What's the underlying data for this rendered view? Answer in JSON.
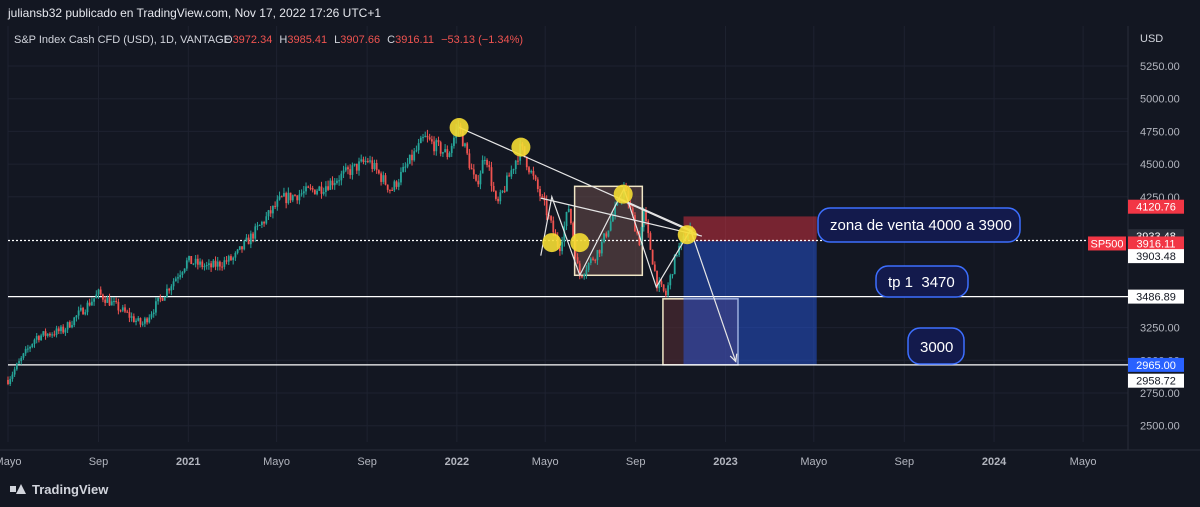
{
  "header": {
    "publisher": "juliansb32 publicado en TradingView.com, Nov 17, 2022 17:26 UTC+1"
  },
  "legend": {
    "symbol": "S&P Index Cash CFD (USD), 1D, VANTAGE",
    "o_label": "O",
    "o_value": "3972.34",
    "h_label": "H",
    "h_value": "3985.41",
    "l_label": "L",
    "l_value": "3907.66",
    "c_label": "C",
    "c_value": "3916.11",
    "change": "−53.13 (−1.34%)"
  },
  "annotations": {
    "zona": "zona de venta 4000 a 3900",
    "tp1": "tp 1  3470",
    "tp2": "3000"
  },
  "footer": {
    "brand": "TradingView"
  },
  "colors": {
    "background": "#131722",
    "up": "#26a69a",
    "down": "#ef5350",
    "sell_zone": "#f23645",
    "target_zone": "#2962ff",
    "marker": "#f5dd33",
    "box": "#f0e6c6"
  },
  "chart_data": {
    "type": "candlestick",
    "title": "S&P Index Cash CFD (USD), 1D, VANTAGE",
    "ylabel": "USD",
    "ylim": [
      2350,
      5400
    ],
    "y_ticks": [
      "5250.00",
      "5000.00",
      "4750.00",
      "4500.00",
      "4250.00",
      "3250.00",
      "3000.00",
      "2750.00",
      "2500.00"
    ],
    "x_ticks": [
      "Mayo",
      "Sep",
      "2021",
      "Mayo",
      "Sep",
      "2022",
      "Mayo",
      "Sep",
      "2023",
      "Mayo",
      "Sep",
      "2024",
      "Mayo"
    ],
    "xlim": [
      "2020-05-01",
      "2024-07-01"
    ],
    "price_trend": [
      {
        "date": "2020-05-01",
        "value": 2850
      },
      {
        "date": "2020-06-08",
        "value": 3180
      },
      {
        "date": "2020-07-15",
        "value": 3230
      },
      {
        "date": "2020-09-01",
        "value": 3510
      },
      {
        "date": "2020-10-30",
        "value": 3270
      },
      {
        "date": "2020-12-31",
        "value": 3760
      },
      {
        "date": "2021-01-29",
        "value": 3710
      },
      {
        "date": "2021-03-04",
        "value": 3780
      },
      {
        "date": "2021-05-07",
        "value": 4230
      },
      {
        "date": "2021-07-01",
        "value": 4320
      },
      {
        "date": "2021-09-02",
        "value": 4530
      },
      {
        "date": "2021-10-04",
        "value": 4300
      },
      {
        "date": "2021-11-18",
        "value": 4700
      },
      {
        "date": "2021-12-20",
        "value": 4570
      },
      {
        "date": "2022-01-03",
        "value": 4800
      },
      {
        "date": "2022-01-27",
        "value": 4330
      },
      {
        "date": "2022-02-09",
        "value": 4590
      },
      {
        "date": "2022-02-24",
        "value": 4170
      },
      {
        "date": "2022-03-29",
        "value": 4630
      },
      {
        "date": "2022-05-02",
        "value": 4150
      },
      {
        "date": "2022-05-20",
        "value": 3850
      },
      {
        "date": "2022-06-02",
        "value": 4170
      },
      {
        "date": "2022-06-16",
        "value": 3640
      },
      {
        "date": "2022-07-15",
        "value": 3860
      },
      {
        "date": "2022-08-16",
        "value": 4320
      },
      {
        "date": "2022-09-06",
        "value": 3910
      },
      {
        "date": "2022-09-12",
        "value": 4120
      },
      {
        "date": "2022-09-30",
        "value": 3590
      },
      {
        "date": "2022-10-12",
        "value": 3500
      },
      {
        "date": "2022-10-27",
        "value": 3830
      },
      {
        "date": "2022-11-15",
        "value": 4020
      },
      {
        "date": "2022-11-17",
        "value": 3916.11
      }
    ],
    "price_labels": [
      {
        "value": 4120.76,
        "text": "4120.76",
        "style": "red"
      },
      {
        "value": 3933.48,
        "text": "3933.48",
        "style": "dark"
      },
      {
        "value": 3916.11,
        "text": "3916.11",
        "style": "red",
        "tag": "SP500"
      },
      {
        "value": 3903.48,
        "text": "3903.48",
        "style": "light"
      },
      {
        "value": 3486.89,
        "text": "3486.89",
        "style": "light"
      },
      {
        "value": 2965.0,
        "text": "2965.00",
        "style": "blue"
      },
      {
        "value": 2958.72,
        "text": "2958.72",
        "style": "light"
      }
    ],
    "horizontal_lines": [
      3916.11,
      3486.89,
      2965.0
    ],
    "markers": [
      {
        "date": "2022-01-04",
        "value": 4780
      },
      {
        "date": "2022-03-29",
        "value": 4630
      },
      {
        "date": "2022-05-10",
        "value": 3900
      },
      {
        "date": "2022-06-17",
        "value": 3900
      },
      {
        "date": "2022-08-15",
        "value": 4270
      },
      {
        "date": "2022-11-10",
        "value": 3960
      }
    ],
    "trend_lines": [
      {
        "from": {
          "date": "2022-01-04",
          "value": 4780
        },
        "to": {
          "date": "2022-11-17",
          "value": 3990
        }
      },
      {
        "from": {
          "date": "2022-04-25",
          "value": 4240
        },
        "to": {
          "date": "2022-11-30",
          "value": 3950
        }
      },
      {
        "from": {
          "date": "2022-08-10",
          "value": 4230
        },
        "to": {
          "date": "2022-11-25",
          "value": 3960
        }
      }
    ],
    "zigzag": [
      {
        "date": "2022-04-25",
        "value": 3800
      },
      {
        "date": "2022-05-10",
        "value": 4250
      },
      {
        "date": "2022-06-17",
        "value": 3650
      },
      {
        "date": "2022-08-16",
        "value": 4310
      },
      {
        "date": "2022-09-29",
        "value": 3560
      },
      {
        "date": "2022-11-15",
        "value": 4000
      }
    ],
    "projection": [
      {
        "date": "2022-11-15",
        "value": 3990
      },
      {
        "date": "2023-01-15",
        "value": 2990
      }
    ],
    "boxes": [
      {
        "from": "2022-06-10",
        "to": "2022-09-10",
        "top": 4330,
        "bottom": 3650,
        "fill": "#6b4d4a"
      },
      {
        "from": "2022-10-08",
        "to": "2023-01-18",
        "top": 3470,
        "bottom": 2965,
        "fill": "#5a2e34"
      }
    ],
    "sell_zone": {
      "from": "2022-11-05",
      "to": "2023-05-05",
      "top": 4100,
      "bottom": 3910
    },
    "target_zone": {
      "from": "2022-11-05",
      "to": "2023-05-05",
      "top": 3910,
      "bottom": 2965
    }
  }
}
